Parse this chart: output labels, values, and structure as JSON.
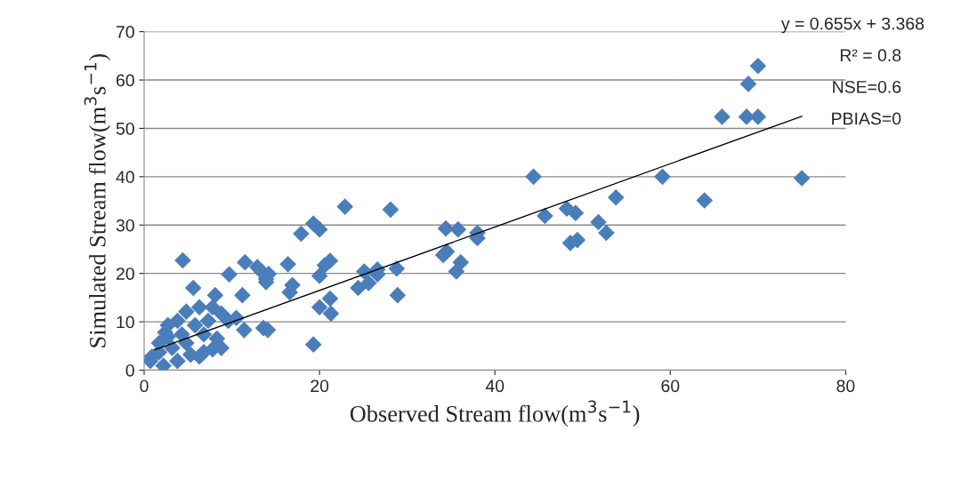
{
  "chart_data": {
    "type": "scatter",
    "xlabel": "Observed Stream flow(m$^{3}$s$^{−1}$)",
    "ylabel": "Simulated Stream flow(m$^{3}$s$^{−1}$)",
    "xlim": [
      0,
      80
    ],
    "xticks": [
      0,
      20,
      40,
      60,
      80
    ],
    "ylim": [
      0,
      70
    ],
    "yticks": [
      0,
      10,
      20,
      30,
      40,
      50,
      60,
      70
    ],
    "grid": "y",
    "legend": false,
    "annotations": [
      "y = 0.655x + 3.368",
      "R² = 0.8",
      "NSE=0.6",
      "PBIAS=0"
    ],
    "series": [
      {
        "color": "#4a7ebb",
        "marker": "diamond",
        "x": [
          70.0,
          68.9,
          65.9,
          68.7,
          70.0,
          44.4,
          59.1,
          75.0,
          53.8,
          63.9,
          45.7,
          48.2,
          49.2,
          51.8,
          52.7,
          48.6,
          49.4,
          22.9,
          28.1,
          19.3,
          20.0,
          17.9,
          34.4,
          35.8,
          38.0,
          38.0,
          34.1,
          34.5,
          36.1,
          35.6,
          16.4,
          21.2,
          20.6,
          20.0,
          25.1,
          26.6,
          28.8,
          26.6,
          24.4,
          25.6,
          16.9,
          16.6,
          28.9,
          21.2,
          20.0,
          21.3,
          19.3,
          13.9,
          14.2,
          14.1,
          4.4,
          9.7,
          11.5,
          12.9,
          13.9,
          13.4,
          5.6,
          8.1,
          11.2,
          10.5,
          11.4,
          13.6,
          2.7,
          3.8,
          4.8,
          6.3,
          7.8,
          8.8,
          9.6,
          7.3,
          5.8,
          6.8,
          8.3,
          7.8,
          4.8,
          3.2,
          1.7,
          0.9,
          0.7,
          2.2,
          3.8,
          5.3,
          6.3,
          6.8,
          4.3,
          2.7,
          1.7,
          8.8,
          2.4
        ],
        "values": [
          62.9,
          59.2,
          52.4,
          52.4,
          52.4,
          40.0,
          40.0,
          39.7,
          35.7,
          35.1,
          31.9,
          33.4,
          32.5,
          30.6,
          28.4,
          26.3,
          26.9,
          33.8,
          33.2,
          30.3,
          29.1,
          28.2,
          29.3,
          29.1,
          28.4,
          27.3,
          23.8,
          24.5,
          22.3,
          20.4,
          21.9,
          22.6,
          21.7,
          19.5,
          20.4,
          20.8,
          21.0,
          19.8,
          17.0,
          18.0,
          17.6,
          16.1,
          15.5,
          14.8,
          13.0,
          11.7,
          5.3,
          18.9,
          19.9,
          8.3,
          22.7,
          19.8,
          22.3,
          21.3,
          18.2,
          20.4,
          17.0,
          15.5,
          15.5,
          10.8,
          8.3,
          8.7,
          9.3,
          10.2,
          12.1,
          13.0,
          13.0,
          11.7,
          10.2,
          10.2,
          9.3,
          7.4,
          6.5,
          4.3,
          5.6,
          4.6,
          3.7,
          2.8,
          1.9,
          0.9,
          1.9,
          3.2,
          2.8,
          3.7,
          7.4,
          6.9,
          5.6,
          4.6,
          7.8
        ]
      },
      {
        "type": "line",
        "color": "#000000",
        "x": [
          1.2,
          75.0
        ],
        "values": [
          4.2,
          52.5
        ]
      }
    ]
  }
}
